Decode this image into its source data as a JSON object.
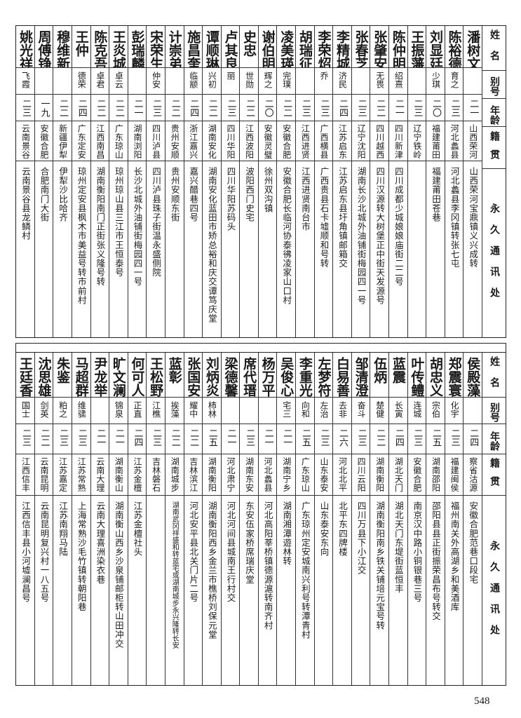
{
  "headers": {
    "name": "姓名",
    "alias": "别号",
    "age": "年龄",
    "native": "籍贯",
    "address": "永久通讯处"
  },
  "top_table": [
    {
      "name": "潘树文",
      "alias": "",
      "age": "二一",
      "native": "山西荣河",
      "address": "山西荣河宝鼎镇义兴成转"
    },
    {
      "name": "陈裕德",
      "alias": "育之",
      "age": "二三",
      "native": "河北蠡县",
      "address": "河北蠡县李冈镇转张七屯"
    },
    {
      "name": "刘显廷",
      "alias": "少琪",
      "age": "二〇",
      "native": "福建莆田",
      "address": "福建莆田苍巷"
    },
    {
      "name": "王振藩",
      "alias": "",
      "age": "二三",
      "native": "辽宁铁岭",
      "address": ""
    },
    {
      "name": "陈仲明",
      "alias": "绍熹",
      "age": "二一",
      "native": "四川新津",
      "address": "四川成都少城娘娘庙街二二号"
    },
    {
      "name": "张肇安",
      "alias": "无畏",
      "age": "二二",
      "native": "四川越西",
      "address": "四川汉源转大树堡正中街天发源号"
    },
    {
      "name": "张春芝",
      "alias": "",
      "age": "二三",
      "native": "辽宁沈阳",
      "address": "湖南长沙北城外油铺街梅园四一号"
    },
    {
      "name": "李精城",
      "alias": "济民",
      "age": "二四",
      "native": "江苏启东",
      "address": "江苏启东县圩角镇邮箱交"
    },
    {
      "name": "李荣炤",
      "alias": "乔",
      "age": "二三",
      "native": "广西横县",
      "address": "广西贵县石卡墟顺和号转"
    },
    {
      "name": "胡瑞征",
      "alias": "",
      "age": "二三",
      "native": "江西进贤",
      "address": "江西进贤南台市"
    },
    {
      "name": "凌美瑛",
      "alias": "完璞",
      "age": "二二",
      "native": "安徽合肥",
      "address": "安徽合肥长临河协泰彿凌家山口村"
    },
    {
      "name": "谢伯明",
      "alias": "辉之",
      "age": "二〇",
      "native": "安徽灵璧",
      "address": "徐州双沟镇"
    },
    {
      "name": "史忠",
      "alias": "世勋",
      "age": "二二",
      "native": "江西波阳",
      "address": "波阳西门史宅"
    },
    {
      "name": "卢其良",
      "alias": "丽",
      "age": "二三",
      "native": "四川华阳",
      "address": "四川华阳苏码头"
    },
    {
      "name": "谭顺琳",
      "alias": "兴初",
      "age": "二二",
      "native": "湖南安化",
      "address": "湖南安化蓝田市矫总裕和庆交谭笃庆堂"
    },
    {
      "name": "施昌奎",
      "alias": "临颛",
      "age": "二四",
      "native": "浙江嘉兴",
      "address": "嘉兴醋巷四号"
    },
    {
      "name": "计崇弟",
      "alias": "",
      "age": "二二",
      "native": "贵州安顺",
      "address": "贵州安顺东街"
    },
    {
      "name": "宋荣生",
      "alias": "仲安",
      "age": "二三",
      "native": "四川泸县",
      "address": "四川泸县珠子街温永盛侧院"
    },
    {
      "name": "彭瑞麟",
      "alias": "",
      "age": "二一",
      "native": "湖南浏阳",
      "address": "长沙北城外油铺街梅园四一号"
    },
    {
      "name": "王炎城",
      "alias": "卓云",
      "age": "二二",
      "native": "广东琼山",
      "address": "琼州琼山县三江市王恒泰号"
    },
    {
      "name": "陈克吾",
      "alias": "卓君",
      "age": "二二",
      "native": "江西南昌",
      "address": "湖南衡阳南门正街张义隆号转"
    },
    {
      "name": "王仲",
      "alias": "德荣",
      "age": "二四",
      "native": "广东定安",
      "address": "琼州定安县枫木市美益号转市前村"
    },
    {
      "name": "穆维新",
      "alias": "",
      "age": "二二",
      "native": "新疆伊犁",
      "address": "伊犁沙比哈齐"
    },
    {
      "name": "周傅铮",
      "alias": "",
      "age": "一九",
      "native": "安徽合肥",
      "address": "合肥南门大街"
    },
    {
      "name": "姚光祥",
      "alias": "飞霞",
      "age": "二三",
      "native": "云南景谷",
      "address": "云南景谷县龙鳞村"
    }
  ],
  "bottom_table": [
    {
      "name": "侯殿藻",
      "alias": "",
      "age": "二四",
      "native": "察省沽源",
      "address": "安徽合肥范巷口段宅"
    },
    {
      "name": "郑震寰",
      "alias": "化宇",
      "age": "二三",
      "native": "福建闽侯",
      "address": "福州南关外高湖乡和美酒库"
    },
    {
      "name": "胡忠义",
      "alias": "宗伯",
      "age": "二五",
      "native": "湖南邵阳",
      "address": "邵阳县县正街振荣昌布号转交"
    },
    {
      "name": "叶传鳢",
      "alias": "连城",
      "age": "二三",
      "native": "安徽合肥",
      "address": "南京汉中路小铜银巷三号"
    },
    {
      "name": "蓝震",
      "alias": "长寅",
      "age": "二四",
      "native": "湖北天门",
      "address": "湖北天门东堤街蓝恒丰"
    },
    {
      "name": "伍炳",
      "alias": "楚健",
      "age": "二二",
      "native": "湖南衡阳",
      "address": "湖南衡阳南乡铁关铺培元宝号转"
    },
    {
      "name": "邹清澄",
      "alias": "奋斗",
      "age": "二三",
      "native": "四川云阳",
      "address": "四川万县下小江交"
    },
    {
      "name": "白易善",
      "alias": "去非",
      "age": "二六",
      "native": "河北北平",
      "address": "北平东四牌楼"
    },
    {
      "name": "左梦符",
      "alias": "左治",
      "age": "二三",
      "native": "山东泰安",
      "address": "山东泰安东向"
    },
    {
      "name": "李重光",
      "alias": "向和",
      "age": "二五",
      "native": "广东琼山",
      "address": "广东琼州定安城南兴利号转潭青村"
    },
    {
      "name": "吴俊心",
      "alias": "宅三",
      "age": "二一",
      "native": "湖南宁乡",
      "address": "湖南湘潭遊林转"
    },
    {
      "name": "杨万平",
      "alias": "",
      "age": "二一",
      "native": "河北蠡县",
      "address": "河北高阳莘桥镇德源滬转南齐村"
    },
    {
      "name": "席代瑨",
      "alias": "",
      "age": "二三",
      "native": "湖南东安",
      "address": "东安伍家桥席瑞庆堂"
    },
    {
      "name": "梁德馨",
      "alias": "",
      "age": "二一",
      "native": "河北肃宁",
      "address": "河北河间县城南王行村交"
    },
    {
      "name": "刘炳炎",
      "alias": "柿林",
      "age": "二五",
      "native": "湖南衡阳",
      "address": "湖南衡阳西乡金兰市樵桥刘保元堂"
    },
    {
      "name": "张国安",
      "alias": "耀中",
      "age": "二二",
      "native": "吉林滨江",
      "address": "河北安平县北关门片二号"
    },
    {
      "name": "蓝彰",
      "alias": "挨藻",
      "age": "二二",
      "native": "湖南城步",
      "address": "湖南武冈祥盛和转蓝宅或湖南城步永兴隆转长安"
    },
    {
      "name": "王松野",
      "alias": "江樵",
      "age": "二三",
      "native": "吉林磐石",
      "address": ""
    },
    {
      "name": "何可人",
      "alias": "正直",
      "age": "二四",
      "native": "江苏金檀",
      "address": "江苏金檀社头"
    },
    {
      "name": "旷文澜",
      "alias": "锦泉",
      "age": "二一",
      "native": "湖南衡山",
      "address": "湖南衡山西乡沙泉铺邮柜转山田冲交"
    },
    {
      "name": "尹龙举",
      "alias": "",
      "age": "二一",
      "native": "云南大理",
      "address": "云南大理喜洲染衣巷"
    },
    {
      "name": "马超群",
      "alias": "维骕",
      "age": "二三",
      "native": "江苏常熟",
      "address": "上海常熟沙毛竹镇转朝阳巷"
    },
    {
      "name": "朱鉴",
      "alias": "粕之",
      "age": "二三",
      "native": "江苏嘉定",
      "address": "江苏南翔马陆"
    },
    {
      "name": "沈思雄",
      "alias": "剑英",
      "age": "二二",
      "native": "云南昆明",
      "address": "云南昆明复兴村一八五号"
    },
    {
      "name": "王廷香",
      "alias": "国士",
      "age": "二三",
      "native": "江西信丰",
      "address": "江西信丰县小河墟澜昌号"
    }
  ],
  "page_number": "548"
}
